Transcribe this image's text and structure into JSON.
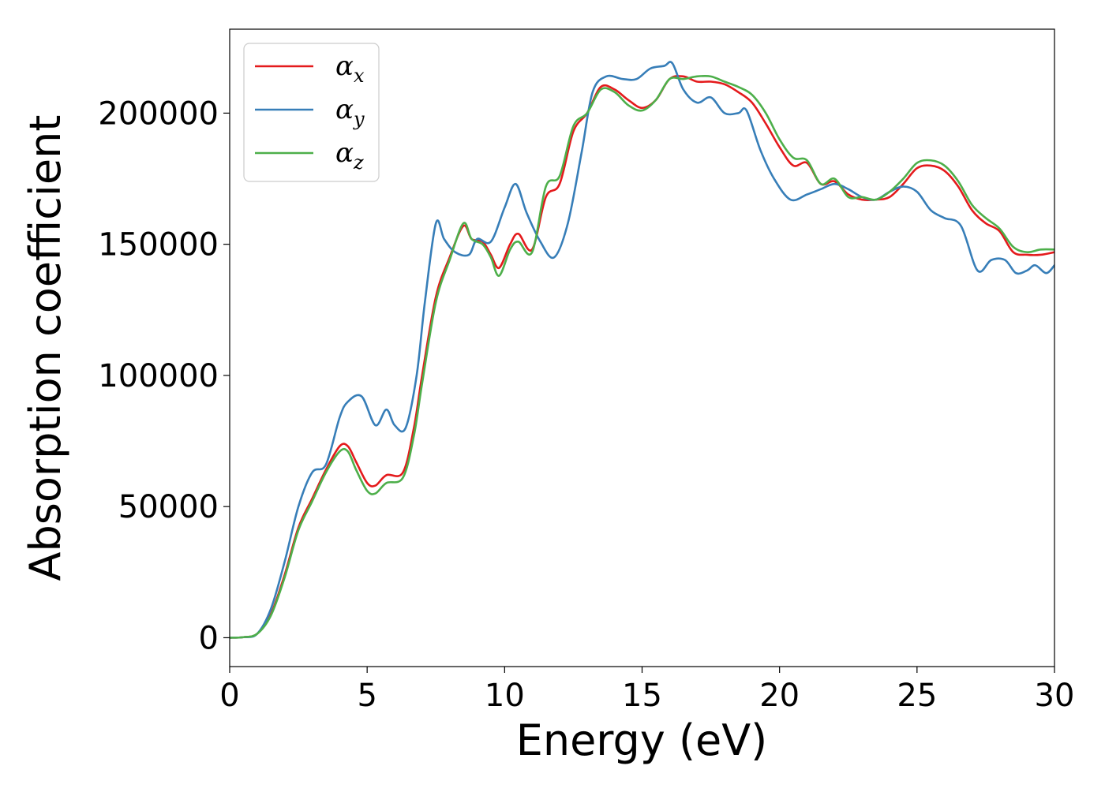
{
  "chart_data": {
    "type": "line",
    "title": "",
    "xlabel": "Energy (eV)",
    "ylabel": "Absorption coefficient",
    "xlim": [
      0,
      30
    ],
    "ylim": [
      -11000,
      232000
    ],
    "x_ticks": [
      0,
      5,
      10,
      15,
      20,
      25,
      30
    ],
    "y_ticks": [
      0,
      50000,
      100000,
      150000,
      200000
    ],
    "grid": false,
    "legend_position": "top-left",
    "series": [
      {
        "name": "αx",
        "symbol": "α",
        "subscript": "x",
        "color": "#e41a1c",
        "points": [
          [
            0,
            0
          ],
          [
            0.5,
            200
          ],
          [
            1.0,
            1500
          ],
          [
            1.5,
            9000
          ],
          [
            2.0,
            24000
          ],
          [
            2.5,
            42000
          ],
          [
            3.0,
            53000
          ],
          [
            3.5,
            64000
          ],
          [
            4.0,
            73000
          ],
          [
            4.3,
            73000
          ],
          [
            4.6,
            67000
          ],
          [
            5.0,
            59000
          ],
          [
            5.3,
            58000
          ],
          [
            5.7,
            62000
          ],
          [
            6.3,
            63000
          ],
          [
            6.7,
            80000
          ],
          [
            7.0,
            100000
          ],
          [
            7.5,
            130000
          ],
          [
            8.0,
            145000
          ],
          [
            8.5,
            157000
          ],
          [
            8.8,
            152000
          ],
          [
            9.2,
            151000
          ],
          [
            9.5,
            146000
          ],
          [
            9.8,
            141000
          ],
          [
            10.2,
            150000
          ],
          [
            10.5,
            154000
          ],
          [
            11.0,
            148000
          ],
          [
            11.5,
            168000
          ],
          [
            12.0,
            173000
          ],
          [
            12.5,
            193000
          ],
          [
            13.0,
            200000
          ],
          [
            13.5,
            210000
          ],
          [
            14.0,
            209000
          ],
          [
            14.5,
            205000
          ],
          [
            15.0,
            202000
          ],
          [
            15.5,
            205000
          ],
          [
            16.0,
            213000
          ],
          [
            16.5,
            214000
          ],
          [
            17.0,
            212000
          ],
          [
            17.5,
            212000
          ],
          [
            18.0,
            211000
          ],
          [
            18.5,
            208000
          ],
          [
            19.0,
            204000
          ],
          [
            19.5,
            196000
          ],
          [
            20.0,
            187000
          ],
          [
            20.5,
            180000
          ],
          [
            21.0,
            181000
          ],
          [
            21.5,
            173000
          ],
          [
            22.0,
            174000
          ],
          [
            22.5,
            169000
          ],
          [
            23.0,
            167000
          ],
          [
            23.5,
            167000
          ],
          [
            24.0,
            168000
          ],
          [
            24.5,
            173000
          ],
          [
            25.0,
            179000
          ],
          [
            25.5,
            180000
          ],
          [
            26.0,
            178000
          ],
          [
            26.5,
            172000
          ],
          [
            27.0,
            163000
          ],
          [
            27.5,
            158000
          ],
          [
            28.0,
            155000
          ],
          [
            28.5,
            147000
          ],
          [
            29.0,
            146000
          ],
          [
            29.5,
            146000
          ],
          [
            30.0,
            147000
          ]
        ]
      },
      {
        "name": "αy",
        "symbol": "α",
        "subscript": "y",
        "color": "#377eb8",
        "points": [
          [
            0,
            0
          ],
          [
            0.5,
            200
          ],
          [
            1.0,
            1500
          ],
          [
            1.5,
            11000
          ],
          [
            2.0,
            29000
          ],
          [
            2.5,
            50000
          ],
          [
            3.0,
            63000
          ],
          [
            3.5,
            66000
          ],
          [
            4.0,
            84000
          ],
          [
            4.3,
            90000
          ],
          [
            4.8,
            92000
          ],
          [
            5.3,
            81000
          ],
          [
            5.7,
            87000
          ],
          [
            6.0,
            81000
          ],
          [
            6.4,
            80000
          ],
          [
            6.8,
            100000
          ],
          [
            7.1,
            128000
          ],
          [
            7.5,
            158000
          ],
          [
            7.8,
            152000
          ],
          [
            8.2,
            147000
          ],
          [
            8.7,
            146000
          ],
          [
            9.0,
            152000
          ],
          [
            9.5,
            151000
          ],
          [
            10.0,
            164000
          ],
          [
            10.4,
            173000
          ],
          [
            10.8,
            162000
          ],
          [
            11.3,
            151000
          ],
          [
            11.8,
            145000
          ],
          [
            12.3,
            158000
          ],
          [
            12.8,
            185000
          ],
          [
            13.2,
            208000
          ],
          [
            13.7,
            214000
          ],
          [
            14.3,
            213000
          ],
          [
            14.8,
            213000
          ],
          [
            15.3,
            217000
          ],
          [
            15.8,
            218000
          ],
          [
            16.1,
            219000
          ],
          [
            16.5,
            209000
          ],
          [
            17.0,
            204000
          ],
          [
            17.5,
            206000
          ],
          [
            18.0,
            200000
          ],
          [
            18.5,
            200000
          ],
          [
            18.8,
            201000
          ],
          [
            19.3,
            186000
          ],
          [
            19.8,
            175000
          ],
          [
            20.4,
            167000
          ],
          [
            21.0,
            169000
          ],
          [
            21.5,
            171000
          ],
          [
            22.0,
            173000
          ],
          [
            22.5,
            171000
          ],
          [
            23.0,
            168000
          ],
          [
            23.5,
            167000
          ],
          [
            24.0,
            170000
          ],
          [
            24.5,
            172000
          ],
          [
            25.0,
            170000
          ],
          [
            25.5,
            163000
          ],
          [
            26.0,
            160000
          ],
          [
            26.6,
            157000
          ],
          [
            27.2,
            140000
          ],
          [
            27.7,
            144000
          ],
          [
            28.2,
            144000
          ],
          [
            28.6,
            139000
          ],
          [
            29.0,
            140000
          ],
          [
            29.3,
            142000
          ],
          [
            29.7,
            139000
          ],
          [
            30.0,
            142000
          ]
        ]
      },
      {
        "name": "αz",
        "symbol": "α",
        "subscript": "z",
        "color": "#4daf4a",
        "points": [
          [
            0,
            0
          ],
          [
            0.5,
            200
          ],
          [
            1.0,
            1500
          ],
          [
            1.5,
            8500
          ],
          [
            2.0,
            23000
          ],
          [
            2.5,
            41000
          ],
          [
            3.0,
            52000
          ],
          [
            3.5,
            63000
          ],
          [
            4.0,
            71000
          ],
          [
            4.3,
            71000
          ],
          [
            4.6,
            64000
          ],
          [
            5.0,
            56000
          ],
          [
            5.3,
            55000
          ],
          [
            5.7,
            59000
          ],
          [
            6.3,
            61000
          ],
          [
            6.7,
            77000
          ],
          [
            7.0,
            97000
          ],
          [
            7.5,
            128000
          ],
          [
            8.0,
            144000
          ],
          [
            8.5,
            158000
          ],
          [
            8.8,
            152000
          ],
          [
            9.2,
            150000
          ],
          [
            9.5,
            145000
          ],
          [
            9.8,
            138000
          ],
          [
            10.2,
            148000
          ],
          [
            10.5,
            151000
          ],
          [
            11.0,
            147000
          ],
          [
            11.5,
            172000
          ],
          [
            12.0,
            176000
          ],
          [
            12.5,
            195000
          ],
          [
            13.0,
            200000
          ],
          [
            13.5,
            209000
          ],
          [
            14.0,
            208000
          ],
          [
            14.5,
            203000
          ],
          [
            15.0,
            201000
          ],
          [
            15.5,
            205000
          ],
          [
            16.0,
            213000
          ],
          [
            16.5,
            213000
          ],
          [
            17.0,
            214000
          ],
          [
            17.5,
            214000
          ],
          [
            18.0,
            212000
          ],
          [
            18.5,
            210000
          ],
          [
            19.0,
            207000
          ],
          [
            19.5,
            200000
          ],
          [
            20.0,
            190000
          ],
          [
            20.5,
            183000
          ],
          [
            21.0,
            182000
          ],
          [
            21.5,
            173000
          ],
          [
            22.0,
            175000
          ],
          [
            22.5,
            168000
          ],
          [
            23.0,
            168000
          ],
          [
            23.5,
            167000
          ],
          [
            24.0,
            170000
          ],
          [
            24.5,
            175000
          ],
          [
            25.0,
            181000
          ],
          [
            25.5,
            182000
          ],
          [
            26.0,
            180000
          ],
          [
            26.5,
            174000
          ],
          [
            27.0,
            165000
          ],
          [
            27.5,
            160000
          ],
          [
            28.0,
            156000
          ],
          [
            28.5,
            149000
          ],
          [
            29.0,
            147000
          ],
          [
            29.5,
            148000
          ],
          [
            30.0,
            148000
          ]
        ]
      }
    ]
  }
}
